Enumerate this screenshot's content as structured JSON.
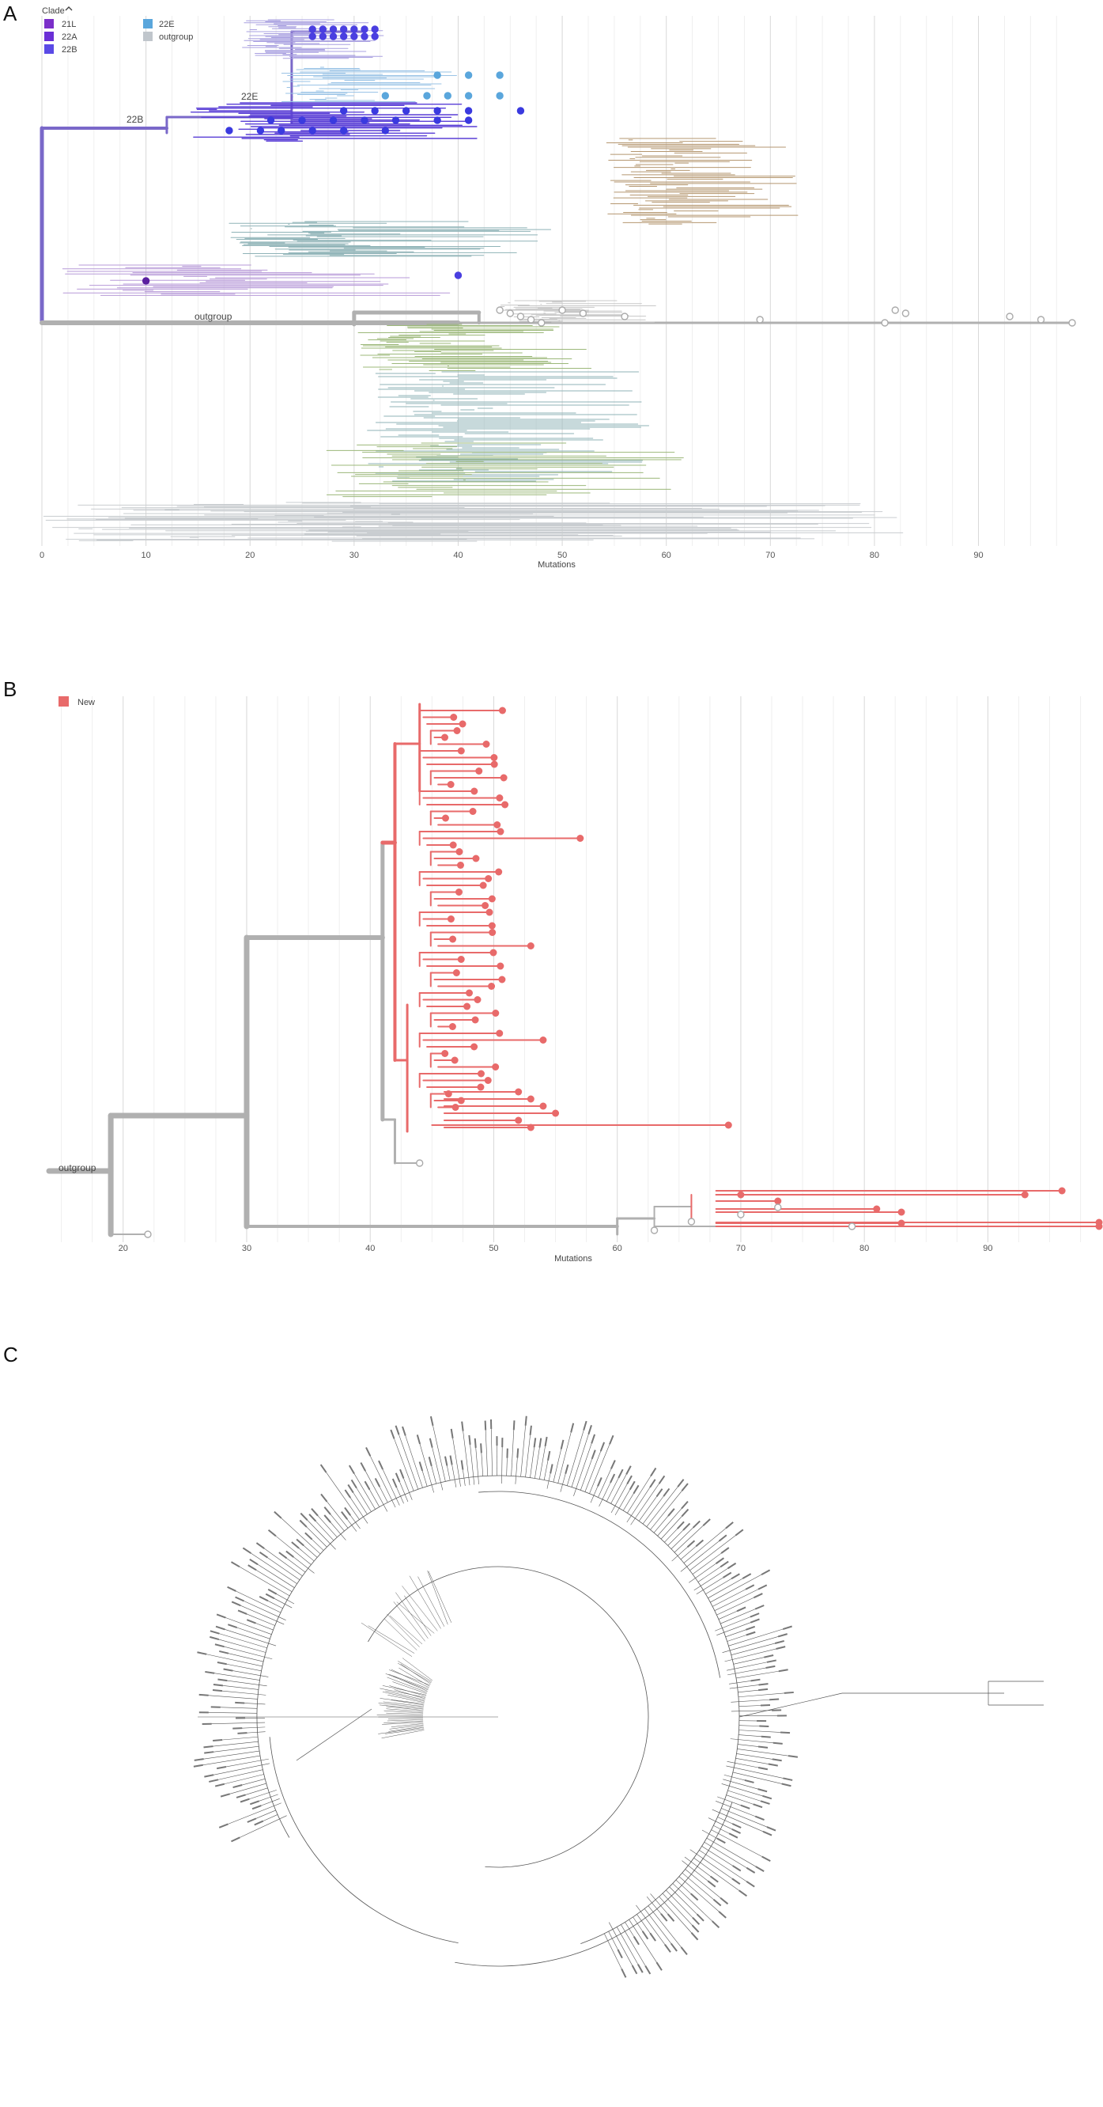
{
  "panels": {
    "a": {
      "letter": "A"
    },
    "b": {
      "letter": "B"
    },
    "c": {
      "letter": "C"
    }
  },
  "panel_a": {
    "legend_title": "Clade",
    "legend": [
      {
        "label": "21L",
        "color": "#7b2fc9"
      },
      {
        "label": "22A",
        "color": "#6a2fd6"
      },
      {
        "label": "22B",
        "color": "#5a4ae6"
      },
      {
        "label": "22E",
        "color": "#5aa6dc"
      },
      {
        "label": "outgroup",
        "color": "#c0c6cc"
      }
    ],
    "node_labels": [
      "22E",
      "22B",
      "outgroup"
    ],
    "x_axis_label": "Mutations",
    "x_ticks": [
      0,
      10,
      20,
      30,
      40,
      50,
      60,
      70,
      80,
      90
    ],
    "x_range": [
      0,
      99
    ]
  },
  "panel_b": {
    "legend": [
      {
        "label": "New",
        "color": "#e86a6a"
      }
    ],
    "node_labels": [
      "outgroup"
    ],
    "x_axis_label": "Mutations",
    "x_ticks": [
      20,
      30,
      40,
      50,
      60,
      70,
      80,
      90
    ],
    "x_range": [
      14,
      99
    ]
  },
  "colors": {
    "grey_branch": "#b0b0b0",
    "new_red": "#e86a6a",
    "purple": "#7a68c9",
    "purple_dark": "#5a3fd6",
    "blue": "#5aa6dc",
    "brown": "#b59770",
    "green": "#9cb87a",
    "teal": "#8fb3b7",
    "grid": "#e4e4e4"
  }
}
